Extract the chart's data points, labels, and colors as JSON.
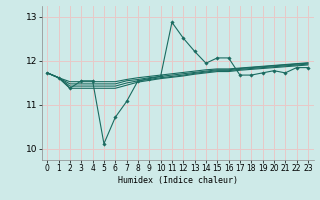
{
  "xlabel": "Humidex (Indice chaleur)",
  "background_color": "#ceeae8",
  "grid_color": "#e8c8c8",
  "line_color": "#1a6b60",
  "xlim": [
    -0.5,
    23.5
  ],
  "ylim": [
    9.75,
    13.25
  ],
  "yticks": [
    10,
    11,
    12,
    13
  ],
  "xticks": [
    0,
    1,
    2,
    3,
    4,
    5,
    6,
    7,
    8,
    9,
    10,
    11,
    12,
    13,
    14,
    15,
    16,
    17,
    18,
    19,
    20,
    21,
    22,
    23
  ],
  "series": [
    [
      11.73,
      11.62,
      11.38,
      11.55,
      11.55,
      10.12,
      10.72,
      11.08,
      11.55,
      11.6,
      11.65,
      12.88,
      12.52,
      12.22,
      11.95,
      12.07,
      12.07,
      11.68,
      11.68,
      11.73,
      11.78,
      11.73,
      11.85,
      11.85
    ],
    [
      11.73,
      11.62,
      11.38,
      11.38,
      11.38,
      11.38,
      11.38,
      11.45,
      11.52,
      11.56,
      11.6,
      11.63,
      11.66,
      11.7,
      11.73,
      11.76,
      11.76,
      11.79,
      11.81,
      11.83,
      11.85,
      11.87,
      11.89,
      11.91
    ],
    [
      11.73,
      11.62,
      11.43,
      11.43,
      11.43,
      11.43,
      11.43,
      11.5,
      11.55,
      11.58,
      11.62,
      11.65,
      11.68,
      11.72,
      11.75,
      11.78,
      11.78,
      11.81,
      11.83,
      11.85,
      11.87,
      11.89,
      11.91,
      11.93
    ],
    [
      11.73,
      11.62,
      11.48,
      11.48,
      11.48,
      11.48,
      11.48,
      11.55,
      11.58,
      11.62,
      11.65,
      11.68,
      11.71,
      11.74,
      11.77,
      11.8,
      11.8,
      11.83,
      11.85,
      11.87,
      11.89,
      11.91,
      11.93,
      11.95
    ],
    [
      11.73,
      11.62,
      11.53,
      11.53,
      11.53,
      11.53,
      11.53,
      11.58,
      11.62,
      11.65,
      11.68,
      11.71,
      11.74,
      11.77,
      11.8,
      11.82,
      11.82,
      11.84,
      11.86,
      11.88,
      11.9,
      11.92,
      11.94,
      11.96
    ]
  ]
}
